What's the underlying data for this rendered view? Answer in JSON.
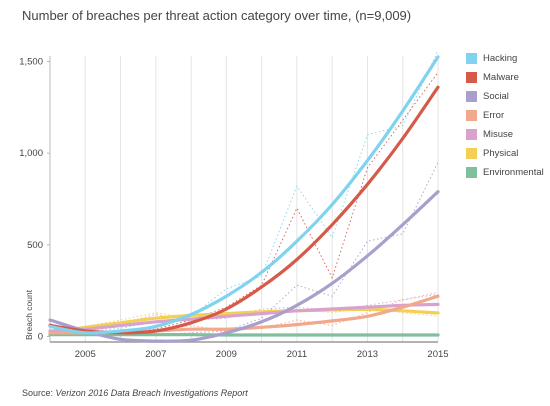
{
  "chart_data": {
    "type": "line",
    "title": "Number of breaches per threat action category over time, (n=9,009)",
    "ylabel": "Breach count",
    "xlabel": "",
    "x_ticks": [
      2005,
      2007,
      2009,
      2011,
      2013,
      2015
    ],
    "y_ticks": [
      0,
      500,
      1000,
      1500
    ],
    "y_tick_labels": [
      "0",
      "500",
      "1,000",
      "1,500"
    ],
    "xlim": [
      2004,
      2015
    ],
    "ylim": [
      -30,
      1530
    ],
    "grid": "vertical",
    "legend_position": "right",
    "x": [
      2004,
      2005,
      2006,
      2007,
      2008,
      2009,
      2010,
      2011,
      2012,
      2013,
      2014,
      2015
    ],
    "series": [
      {
        "name": "Hacking",
        "color": "#7fd3ef",
        "values": [
          55,
          20,
          30,
          55,
          120,
          220,
          350,
          520,
          720,
          960,
          1230,
          1525
        ],
        "raw": [
          50,
          25,
          45,
          80,
          110,
          260,
          330,
          820,
          540,
          1100,
          1150,
          1560
        ]
      },
      {
        "name": "Malware",
        "color": "#d65a4a",
        "values": [
          60,
          30,
          20,
          30,
          75,
          150,
          270,
          420,
          610,
          830,
          1080,
          1360
        ],
        "raw": [
          65,
          20,
          35,
          40,
          90,
          160,
          280,
          700,
          320,
          920,
          1180,
          1440
        ]
      },
      {
        "name": "Social",
        "color": "#a99fcb",
        "values": [
          90,
          30,
          -15,
          -25,
          -20,
          20,
          80,
          170,
          290,
          440,
          610,
          790
        ],
        "raw": [
          70,
          10,
          5,
          10,
          20,
          30,
          100,
          280,
          220,
          520,
          560,
          950
        ]
      },
      {
        "name": "Error",
        "color": "#f2a88c",
        "values": [
          20,
          20,
          25,
          30,
          40,
          40,
          50,
          65,
          85,
          110,
          160,
          220
        ],
        "raw": [
          25,
          15,
          30,
          35,
          60,
          30,
          45,
          90,
          60,
          130,
          200,
          240
        ]
      },
      {
        "name": "Misuse",
        "color": "#d8a2cf",
        "values": [
          30,
          40,
          60,
          80,
          95,
          110,
          125,
          140,
          150,
          160,
          170,
          175
        ],
        "raw": [
          35,
          45,
          70,
          120,
          90,
          100,
          150,
          160,
          140,
          170,
          200,
          230
        ]
      },
      {
        "name": "Physical",
        "color": "#f4cf56",
        "values": [
          20,
          50,
          75,
          100,
          115,
          125,
          135,
          140,
          145,
          148,
          140,
          128
        ],
        "raw": [
          25,
          55,
          90,
          130,
          100,
          120,
          140,
          150,
          130,
          160,
          130,
          110
        ]
      },
      {
        "name": "Environmental",
        "color": "#7fbf9c",
        "values": [
          10,
          10,
          10,
          10,
          10,
          8,
          8,
          8,
          8,
          8,
          8,
          8
        ],
        "raw": [
          10,
          10,
          10,
          10,
          10,
          8,
          8,
          8,
          8,
          8,
          8,
          8
        ]
      }
    ]
  },
  "source": {
    "prefix": "Source: ",
    "report": "Verizon 2016 Data Breach Investigations Report"
  }
}
